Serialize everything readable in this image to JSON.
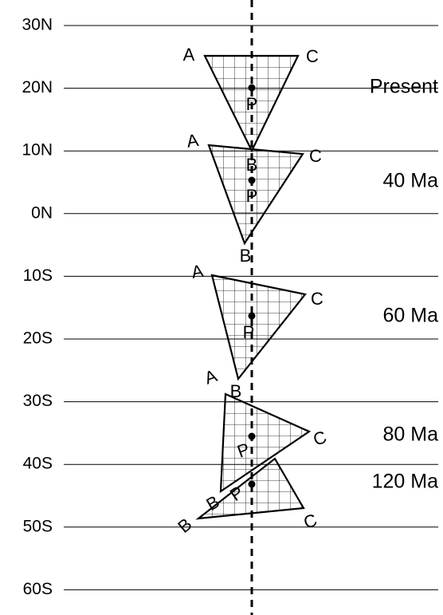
{
  "latitude_labels": [
    "30N",
    "20N",
    "10N",
    "0N",
    "10S",
    "20S",
    "30S",
    "40S",
    "50S",
    "60S"
  ],
  "triangles": [
    {
      "age": "Present",
      "vertices": {
        "A": "A",
        "B": "B",
        "C": "C",
        "P": "P"
      }
    },
    {
      "age": "40 Ma",
      "vertices": {
        "A": "A",
        "B": "B",
        "C": "C",
        "P": "P"
      }
    },
    {
      "age": "60 Ma",
      "vertices": {
        "A": "A",
        "B": "B",
        "C": "C",
        "P": "P"
      }
    },
    {
      "age": "80 Ma",
      "vertices": {
        "A": "A",
        "B": "B",
        "C": "C",
        "P": "P"
      }
    },
    {
      "age": "120 Ma",
      "vertices": {
        "B": "B",
        "C": "C",
        "P": "P"
      }
    }
  ]
}
